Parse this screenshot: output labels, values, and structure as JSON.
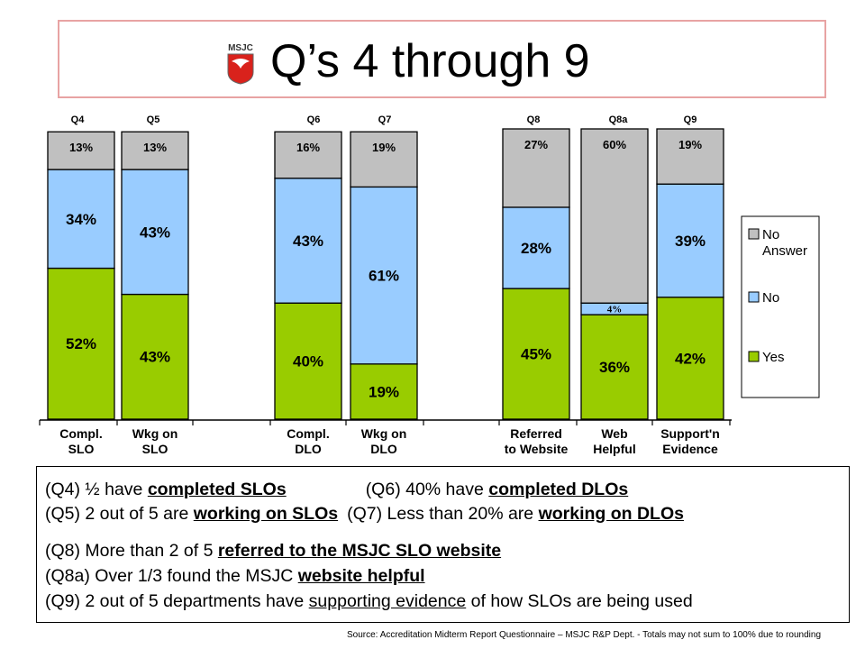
{
  "title": "Q’s 4 through 9",
  "logo": {
    "icon": "msjc-eagle-shield-icon",
    "text": "MSJC"
  },
  "chart_data": {
    "type": "bar",
    "stacked": true,
    "y_unit": "percent",
    "ylim": [
      0,
      100
    ],
    "grid": false,
    "legend_position": "right",
    "question_labels": [
      "Q4",
      "Q5",
      "Q6",
      "Q7",
      "Q8",
      "Q8a",
      "Q9"
    ],
    "categories": [
      "Compl.\nSLO",
      "Wkg on\nSLO",
      "Compl.\nDLO",
      "Wkg on\nDLO",
      "Referred\nto Website",
      "Web\nHelpful",
      "Support'n\nEvidence"
    ],
    "series": [
      {
        "name": "Yes",
        "color": "#99cc00",
        "values": [
          52,
          43,
          40,
          19,
          45,
          36,
          42
        ],
        "labels": [
          "52%",
          "43%",
          "40%",
          "19%",
          "45%",
          "36%",
          "42%"
        ]
      },
      {
        "name": "No",
        "color": "#99ccff",
        "values": [
          34,
          43,
          43,
          61,
          28,
          4,
          39
        ],
        "labels": [
          "34%",
          "43%",
          "43%",
          "61%",
          "28%",
          "4%",
          "39%"
        ]
      },
      {
        "name": "No\nAnswer",
        "color": "#c0c0c0",
        "values": [
          13,
          13,
          16,
          19,
          27,
          60,
          19
        ],
        "labels": [
          "13%",
          "13%",
          "16%",
          "19%",
          "27%",
          "60%",
          "19%"
        ]
      }
    ]
  },
  "summary": {
    "l1": {
      "a_pre": "(Q4) ½ have ",
      "a_u": "completed SLOs",
      "b_pre": "(Q6) 40% have ",
      "b_u": "completed DLOs"
    },
    "l2": {
      "a_pre": "(Q5) 2 out of 5 are ",
      "a_u": "working on SLOs",
      "b_pre": "(Q7) Less than 20% are ",
      "b_u": "working on DLOs"
    },
    "l3": {
      "pre": "(Q8) More than 2 of 5 ",
      "u": "referred to the MSJC SLO website"
    },
    "l4": {
      "pre": "(Q8a) Over 1/3 found the MSJC ",
      "u": "website helpful"
    },
    "l5": {
      "pre": "(Q9) 2 out of 5 departments have ",
      "u": "supporting evidence",
      "post": " of how SLOs are being used"
    }
  },
  "source": "Source: Accreditation Midterm Report Questionnaire – MSJC R&P Dept. - Totals may not sum to 100% due to rounding"
}
